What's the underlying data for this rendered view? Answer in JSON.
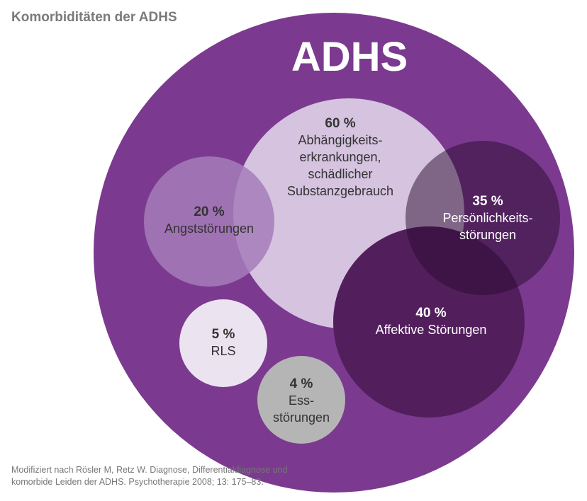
{
  "title": "Komorbiditäten der ADHS",
  "main_label": "ADHS",
  "source": [
    "Modifiziert nach Rösler M, Retz W. Diagnose, Differentialdiagnose und",
    "komorbide Leiden der ADHS. Psychotherapie 2008; 13: 175–83."
  ],
  "colors": {
    "adhs": "#7b3a8f",
    "sucht": "#d5c3df",
    "angst": "#a67cba",
    "persoenlichkeit": "#2a0a30",
    "affektiv": "#521f5c",
    "rls": "#ece3f1",
    "ess": "#b5b5b5"
  },
  "circles": [
    {
      "id": "sucht",
      "percent": "60 %",
      "lines": [
        "Abhängigkeits-",
        "erkrankungen,",
        "schädlicher",
        "Substanzgebrauch"
      ]
    },
    {
      "id": "angst",
      "percent": "20 %",
      "lines": [
        "Angststörungen"
      ]
    },
    {
      "id": "affektiv",
      "percent": "40 %",
      "lines": [
        "Affektive Störungen"
      ]
    },
    {
      "id": "persoenlichkeit",
      "percent": "35 %",
      "lines": [
        "Persönlichkeits-",
        "störungen"
      ]
    },
    {
      "id": "rls",
      "percent": "5 %",
      "lines": [
        "RLS"
      ]
    },
    {
      "id": "ess",
      "percent": "4 %",
      "lines": [
        "Ess-",
        "störungen"
      ]
    }
  ]
}
